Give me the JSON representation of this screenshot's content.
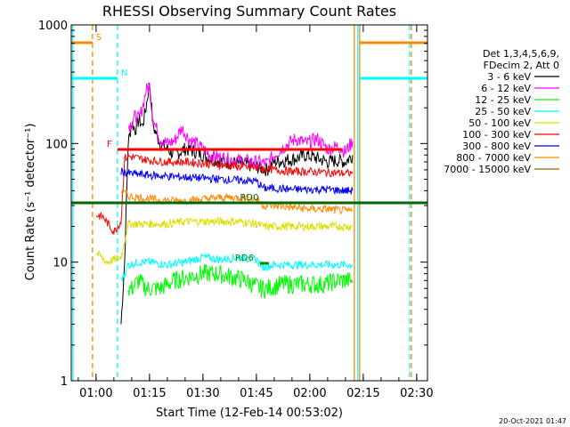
{
  "chart_data": {
    "type": "line",
    "title": "RHESSI Observing Summary Count Rates",
    "xlabel": "Start Time (12-Feb-14 00:53:02)",
    "ylabel": "Count Rate (s⁻¹ detector⁻¹)",
    "yscale": "log",
    "xlim": [
      "00:53:02",
      "02:33:02"
    ],
    "ylim": [
      1,
      1000
    ],
    "x_ticks": [
      "01:00",
      "01:15",
      "01:30",
      "01:45",
      "02:00",
      "02:15",
      "02:30"
    ],
    "y_ticks": [
      "1",
      "10",
      "100",
      "1000"
    ],
    "legend_header": [
      "Det 1,3,4,5,6,9,",
      "FDecim 2, Att 0"
    ],
    "legend_position": "right",
    "timestamp": "20-Oct-2021 01:47",
    "series": [
      {
        "name": "3 - 6 keV",
        "color": "#000000",
        "x": [
          "01:07",
          "01:08",
          "01:09",
          "01:10",
          "01:11",
          "01:12",
          "01:13",
          "01:14",
          "01:15",
          "01:16",
          "01:18",
          "01:20",
          "01:22",
          "01:25",
          "01:28",
          "01:32",
          "01:36",
          "01:40",
          "01:44",
          "01:48",
          "01:50",
          "01:53",
          "01:56",
          "01:59",
          "02:02",
          "02:05",
          "02:08",
          "02:10",
          "02:12"
        ],
        "values": [
          3,
          10,
          100,
          150,
          130,
          160,
          140,
          200,
          330,
          140,
          100,
          90,
          80,
          90,
          85,
          75,
          70,
          68,
          65,
          60,
          70,
          72,
          75,
          80,
          75,
          70,
          72,
          70,
          80
        ]
      },
      {
        "name": "6 - 12 keV",
        "color": "#ff00ff",
        "x": [
          "01:09",
          "01:10",
          "01:11",
          "01:12",
          "01:13",
          "01:14",
          "01:15",
          "01:16",
          "01:18",
          "01:20",
          "01:22",
          "01:24",
          "01:26",
          "01:28",
          "01:30",
          "01:32",
          "01:36",
          "01:40",
          "01:44",
          "01:48",
          "01:50",
          "01:53",
          "01:56",
          "01:59",
          "02:02",
          "02:05",
          "02:08",
          "02:10",
          "02:12"
        ],
        "values": [
          140,
          150,
          170,
          160,
          200,
          280,
          300,
          160,
          110,
          100,
          105,
          135,
          110,
          100,
          90,
          80,
          75,
          72,
          70,
          68,
          80,
          95,
          110,
          100,
          110,
          90,
          95,
          85,
          105
        ]
      },
      {
        "name": "12 - 25 keV",
        "color": "#00ff00",
        "x": [
          "01:09",
          "01:10",
          "01:12",
          "01:14",
          "01:15",
          "01:18",
          "01:22",
          "01:26",
          "01:30",
          "01:34",
          "01:38",
          "01:42",
          "01:46",
          "01:48",
          "01:52",
          "01:56",
          "02:00",
          "02:04",
          "02:08",
          "02:12"
        ],
        "values": [
          6,
          6,
          7,
          6,
          6,
          6,
          7,
          7.5,
          8,
          8,
          7.5,
          7,
          6,
          6,
          6.5,
          6.5,
          6.5,
          6.5,
          7,
          7
        ]
      },
      {
        "name": "25 - 50 keV",
        "color": "#00ffff",
        "x": [
          "01:07",
          "01:08",
          "01:09",
          "01:12",
          "01:15",
          "01:20",
          "01:25",
          "01:30",
          "01:35",
          "01:40",
          "01:45",
          "01:47",
          "01:50",
          "01:55",
          "02:00",
          "02:05",
          "02:10",
          "02:12"
        ],
        "values": [
          7,
          8,
          9.5,
          10,
          10,
          9.5,
          10,
          11,
          10.5,
          11,
          10.5,
          9,
          9.5,
          9.5,
          9.5,
          9.5,
          9.5,
          9.5
        ]
      },
      {
        "name": "50 - 100 keV",
        "color": "#dddd00",
        "x": [
          "01:00",
          "01:03",
          "01:07",
          "01:09",
          "01:12",
          "01:15",
          "01:20",
          "01:25",
          "01:30",
          "01:35",
          "01:40",
          "01:45",
          "01:47",
          "01:50",
          "01:55",
          "02:00",
          "02:05",
          "02:10",
          "02:12"
        ],
        "values": [
          12,
          10,
          11,
          21,
          21,
          21,
          21,
          22,
          22,
          22,
          22,
          21,
          20,
          20,
          20,
          20,
          20,
          20,
          20
        ]
      },
      {
        "name": "100 - 300 keV",
        "color": "#ff0000",
        "x": [
          "01:00",
          "01:02",
          "01:05",
          "01:07",
          "01:08",
          "01:09",
          "01:12",
          "01:15",
          "01:20",
          "01:25",
          "01:30",
          "01:35",
          "01:40",
          "01:45",
          "01:50",
          "01:55",
          "02:00",
          "02:05",
          "02:10",
          "02:12"
        ],
        "values": [
          25,
          24,
          18,
          22,
          75,
          78,
          75,
          72,
          70,
          70,
          68,
          66,
          64,
          62,
          60,
          58,
          58,
          57,
          56,
          56
        ]
      },
      {
        "name": "300 - 800 keV",
        "color": "#0000ff",
        "x": [
          "01:07",
          "01:09",
          "01:12",
          "01:15",
          "01:20",
          "01:25",
          "01:30",
          "01:35",
          "01:40",
          "01:45",
          "01:47",
          "01:50",
          "01:55",
          "02:00",
          "02:05",
          "02:10",
          "02:12"
        ],
        "values": [
          58,
          56,
          55,
          54,
          53,
          52,
          51,
          50,
          49,
          48,
          42,
          42,
          41,
          41,
          41,
          40,
          40
        ]
      },
      {
        "name": "800 - 7000 keV",
        "color": "#ff8800",
        "x": [
          "01:07",
          "01:09",
          "01:12",
          "01:15",
          "01:20",
          "01:25",
          "01:30",
          "01:35",
          "01:40",
          "01:45",
          "01:47",
          "01:50",
          "01:55",
          "02:00",
          "02:05",
          "02:10",
          "02:12"
        ],
        "values": [
          40,
          36,
          35,
          34,
          33,
          33,
          34,
          35,
          35,
          34,
          30,
          30,
          29,
          28,
          28,
          27,
          27
        ]
      },
      {
        "name": "7000 - 15000 keV",
        "color": "#996600",
        "x": [],
        "values": []
      }
    ],
    "flag_bars": [
      {
        "label": "S",
        "color": "#ff8800",
        "start": "00:53:02",
        "end": "00:59:00",
        "level": 0.95
      },
      {
        "label": "N",
        "color": "#00ffff",
        "start": "00:53:02",
        "end": "01:06:00",
        "level": 0.85
      },
      {
        "label": "F",
        "color": "#ff0000",
        "start": "01:06:00",
        "end": "02:09:00",
        "level": 0.65
      },
      {
        "label": "RD0",
        "color": "#006600",
        "start": "00:53:02",
        "end": "02:33:02",
        "level": 0.5
      },
      {
        "label": "RD6",
        "color": "#008800",
        "start": "01:46:00",
        "end": "01:48:30",
        "level": 0.33
      },
      {
        "label": "",
        "color": "#ff8800",
        "start": "02:14:00",
        "end": "02:33:02",
        "level": 0.95
      },
      {
        "label": "",
        "color": "#00ffff",
        "start": "02:14:00",
        "end": "02:33:02",
        "level": 0.85
      }
    ],
    "vlines": [
      {
        "time": "00:53:30",
        "color": "#00ffff",
        "style": "solid"
      },
      {
        "time": "00:59:00",
        "color": "#ff8800",
        "style": "dashed"
      },
      {
        "time": "01:06:00",
        "color": "#00ffff",
        "style": "dashed"
      },
      {
        "time": "02:12:30",
        "color": "#ff8800",
        "style": "solid"
      },
      {
        "time": "02:13:30",
        "color": "#00ffff",
        "style": "solid"
      },
      {
        "time": "02:14:00",
        "color": "#ff8800",
        "style": "solid"
      },
      {
        "time": "02:28:00",
        "color": "#00ffff",
        "style": "dashed"
      },
      {
        "time": "02:28:30",
        "color": "#ff8800",
        "style": "dashed"
      }
    ]
  }
}
